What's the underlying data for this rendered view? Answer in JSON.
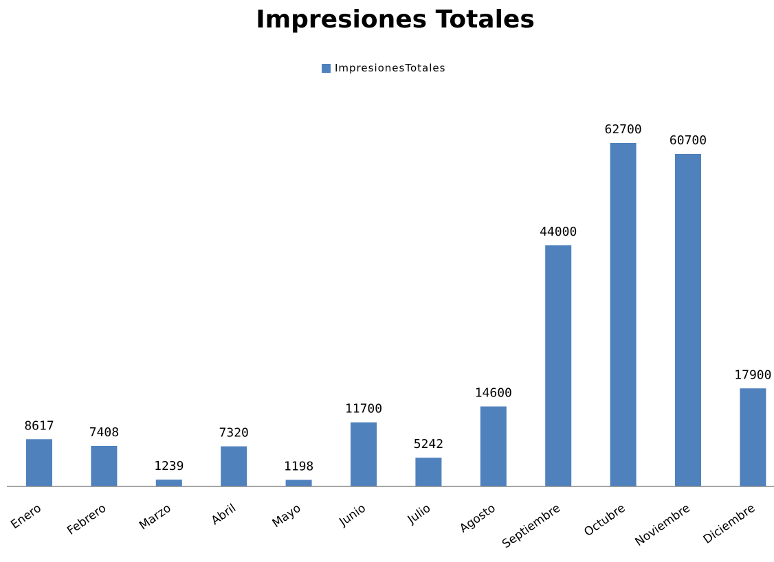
{
  "chart_data": {
    "type": "bar",
    "title": "Impresiones Totales",
    "categories": [
      "Enero",
      "Febrero",
      "Marzo",
      "Abril",
      "Mayo",
      "Junio",
      "Julio",
      "Agosto",
      "Septiembre",
      "Octubre",
      "Noviembre",
      "Diciembre"
    ],
    "series": [
      {
        "name": "ImpresionesTotales",
        "values": [
          8617,
          7408,
          1239,
          7320,
          1198,
          11700,
          5242,
          14600,
          44000,
          62700,
          60700,
          17900
        ],
        "color": "#4f81bd"
      }
    ],
    "data_labels": [
      "8617",
      "7408",
      "1239",
      "7320",
      "1198",
      "11700",
      "5242",
      "14600",
      "44000",
      "62700",
      "60700",
      "17900"
    ],
    "legend": "top",
    "grid": false,
    "ylim": [
      0,
      62700
    ]
  }
}
